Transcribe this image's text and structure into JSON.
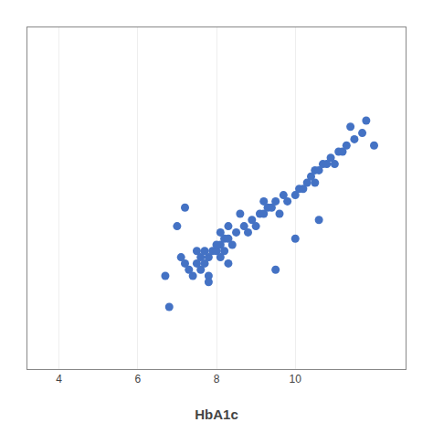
{
  "chart_data": {
    "type": "scatter",
    "xlabel": "HbA1c",
    "x": [
      6.7,
      6.8,
      7.1,
      7.2,
      7.3,
      7.4,
      7.5,
      7.5,
      7.6,
      7.6,
      7.7,
      7.7,
      7.8,
      7.8,
      7.9,
      8.0,
      8.0,
      8.1,
      8.1,
      8.1,
      8.2,
      8.2,
      8.3,
      8.3,
      8.4,
      8.5,
      8.7,
      8.8,
      8.9,
      9.0,
      9.1,
      9.2,
      9.2,
      9.3,
      9.4,
      9.5,
      9.6,
      9.7,
      9.8,
      10.0,
      10.1,
      10.2,
      10.3,
      10.4,
      10.5,
      10.5,
      10.6,
      10.7,
      10.8,
      10.9,
      11.0,
      11.1,
      11.2,
      11.3,
      11.5,
      11.7,
      11.8,
      12.0,
      7.0,
      7.2,
      7.8,
      8.3,
      8.6,
      9.5,
      10.0,
      10.6,
      11.4
    ],
    "values": [
      8.5,
      8.0,
      8.8,
      8.7,
      8.6,
      8.5,
      8.7,
      8.9,
      8.6,
      8.8,
      8.7,
      8.9,
      8.5,
      8.8,
      8.9,
      8.9,
      9.0,
      8.8,
      9.0,
      9.2,
      8.9,
      9.1,
      9.1,
      9.3,
      9.0,
      9.2,
      9.3,
      9.2,
      9.4,
      9.3,
      9.5,
      9.5,
      9.7,
      9.6,
      9.6,
      9.7,
      9.5,
      9.8,
      9.7,
      9.8,
      9.9,
      9.9,
      10.0,
      10.1,
      10.0,
      10.2,
      10.2,
      10.3,
      10.3,
      10.4,
      10.3,
      10.5,
      10.5,
      10.6,
      10.7,
      10.8,
      11.0,
      10.6,
      9.3,
      9.6,
      8.4,
      8.7,
      9.5,
      8.6,
      9.1,
      9.4,
      10.9
    ],
    "color": "#4472C4",
    "xlim": [
      3.2,
      12.8
    ],
    "xticks": [
      4,
      6,
      8,
      10
    ],
    "ylim": [
      7.0,
      12.5
    ],
    "yticks": [],
    "grid": true,
    "tick_labels": "x"
  }
}
